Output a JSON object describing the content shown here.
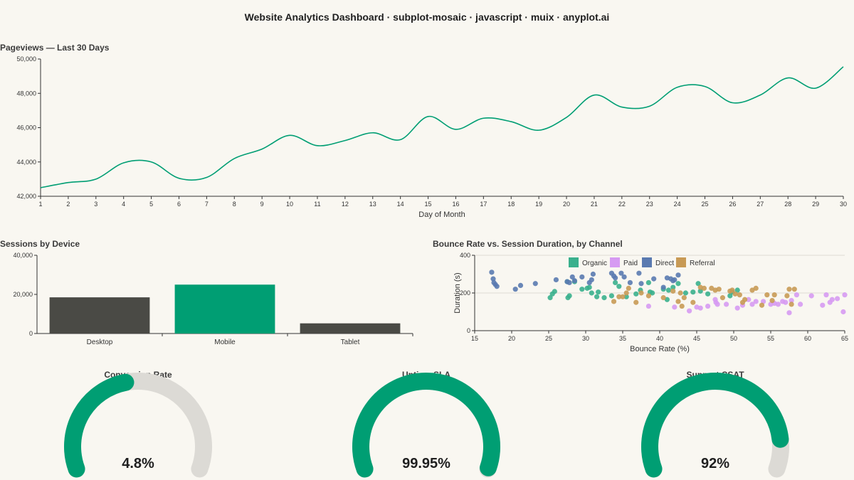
{
  "title": "Website Analytics Dashboard · subplot-mosaic · javascript · muix · anyplot.ai",
  "colors": {
    "accent": "#009e73",
    "neutral_bar": "#4a4a45",
    "gauge_track": "#dcdad5",
    "organic": "#3ab08d",
    "paid": "#d69af2",
    "direct": "#5a7ab0",
    "referral": "#c89a55"
  },
  "chart_data": [
    {
      "id": "pageviews",
      "type": "line",
      "title": "Pageviews — Last 30 Days",
      "xlabel": "Day of Month",
      "ylabel": "",
      "x": [
        1,
        2,
        3,
        4,
        5,
        6,
        7,
        8,
        9,
        10,
        11,
        12,
        13,
        14,
        15,
        16,
        17,
        18,
        19,
        20,
        21,
        22,
        23,
        24,
        25,
        26,
        27,
        28,
        29,
        30
      ],
      "values": [
        42500,
        42800,
        43000,
        43950,
        44000,
        43050,
        43100,
        44200,
        44750,
        45550,
        44950,
        45250,
        45700,
        45300,
        46650,
        45900,
        46550,
        46350,
        45850,
        46600,
        47900,
        47200,
        47250,
        48350,
        48400,
        47450,
        47900,
        48900,
        48300,
        49550
      ],
      "xlim": [
        1,
        30
      ],
      "ylim": [
        42000,
        50000
      ],
      "yticks": [
        "42,000",
        "44,000",
        "46,000",
        "48,000",
        "50,000"
      ],
      "grid": false
    },
    {
      "id": "sessions",
      "type": "bar",
      "title": "Sessions by Device",
      "xlabel": "",
      "ylabel": "",
      "categories": [
        "Desktop",
        "Mobile",
        "Tablet"
      ],
      "values": [
        18500,
        25000,
        5200
      ],
      "highlight": "Mobile",
      "ylim": [
        0,
        40000
      ],
      "yticks": [
        "0",
        "20,000",
        "40,000"
      ]
    },
    {
      "id": "bounce",
      "type": "scatter",
      "title": "Bounce Rate vs. Session Duration, by Channel",
      "xlabel": "Bounce Rate (%)",
      "ylabel": "Duration (s)",
      "xlim": [
        15,
        65
      ],
      "ylim": [
        0,
        400
      ],
      "xticks": [
        "15",
        "20",
        "25",
        "30",
        "35",
        "40",
        "45",
        "50",
        "55",
        "60",
        "65"
      ],
      "yticks": [
        "0",
        "200",
        "400"
      ],
      "grid": true,
      "legend_position": "top",
      "series": [
        {
          "name": "Organic",
          "color_key": "organic",
          "points": [
            [
              25.2,
              175
            ],
            [
              25.5,
              195
            ],
            [
              25.8,
              208
            ],
            [
              27.5,
              260
            ],
            [
              27.6,
              175
            ],
            [
              27.8,
              185
            ],
            [
              28.5,
              260
            ],
            [
              29.5,
              220
            ],
            [
              30.2,
              225
            ],
            [
              30.5,
              230
            ],
            [
              30.8,
              200
            ],
            [
              31.5,
              180
            ],
            [
              31.7,
              205
            ],
            [
              32.5,
              175
            ],
            [
              33.5,
              185
            ],
            [
              34,
              255
            ],
            [
              34.5,
              235
            ],
            [
              35.5,
              180
            ],
            [
              36.8,
              195
            ],
            [
              37.4,
              215
            ],
            [
              38.5,
              255
            ],
            [
              38.7,
              205
            ],
            [
              39,
              200
            ],
            [
              40.5,
              220
            ],
            [
              41,
              165
            ],
            [
              41.2,
              215
            ],
            [
              41.8,
              230
            ],
            [
              42.5,
              250
            ],
            [
              43.5,
              200
            ],
            [
              44.5,
              205
            ],
            [
              45.2,
              250
            ],
            [
              45.5,
              210
            ],
            [
              46.5,
              195
            ],
            [
              49.5,
              185
            ],
            [
              49.8,
              205
            ],
            [
              50.5,
              215
            ]
          ]
        },
        {
          "name": "Paid",
          "color_key": "paid",
          "points": [
            [
              38.5,
              130
            ],
            [
              42,
              125
            ],
            [
              44,
              105
            ],
            [
              45,
              125
            ],
            [
              45.5,
              120
            ],
            [
              46.5,
              130
            ],
            [
              47.5,
              165
            ],
            [
              47.6,
              150
            ],
            [
              47.8,
              140
            ],
            [
              49,
              140
            ],
            [
              50.5,
              120
            ],
            [
              51.2,
              135
            ],
            [
              52,
              165
            ],
            [
              52.5,
              140
            ],
            [
              53,
              155
            ],
            [
              54,
              155
            ],
            [
              55,
              140
            ],
            [
              55.5,
              145
            ],
            [
              56,
              140
            ],
            [
              56.6,
              155
            ],
            [
              57,
              150
            ],
            [
              57.5,
              95
            ],
            [
              57.8,
              160
            ],
            [
              58.5,
              190
            ],
            [
              59,
              140
            ],
            [
              60.5,
              185
            ],
            [
              62,
              135
            ],
            [
              62.5,
              190
            ],
            [
              63,
              150
            ],
            [
              63.3,
              165
            ],
            [
              64,
              170
            ],
            [
              64.8,
              100
            ],
            [
              65,
              190
            ]
          ]
        },
        {
          "name": "Direct",
          "color_key": "direct",
          "points": [
            [
              17.3,
              310
            ],
            [
              17.5,
              275
            ],
            [
              17.6,
              255
            ],
            [
              17.8,
              245
            ],
            [
              18,
              235
            ],
            [
              20.5,
              220
            ],
            [
              21.2,
              240
            ],
            [
              23.2,
              250
            ],
            [
              26,
              270
            ],
            [
              27.5,
              260
            ],
            [
              27.8,
              255
            ],
            [
              28.2,
              285
            ],
            [
              28.5,
              265
            ],
            [
              29.5,
              285
            ],
            [
              30.5,
              255
            ],
            [
              30.8,
              270
            ],
            [
              31,
              300
            ],
            [
              33.5,
              305
            ],
            [
              33.8,
              290
            ],
            [
              34,
              280
            ],
            [
              34.8,
              305
            ],
            [
              35.2,
              285
            ],
            [
              36,
              255
            ],
            [
              37.2,
              305
            ],
            [
              37.5,
              250
            ],
            [
              39.2,
              275
            ],
            [
              40.5,
              230
            ],
            [
              41,
              280
            ],
            [
              41.5,
              275
            ],
            [
              41.8,
              265
            ],
            [
              42,
              270
            ],
            [
              42.5,
              295
            ]
          ]
        },
        {
          "name": "Referral",
          "color_key": "referral",
          "points": [
            [
              33.8,
              155
            ],
            [
              34.5,
              180
            ],
            [
              35,
              180
            ],
            [
              35.5,
              200
            ],
            [
              35.8,
              225
            ],
            [
              36.8,
              150
            ],
            [
              37.5,
              200
            ],
            [
              38.5,
              185
            ],
            [
              40.5,
              175
            ],
            [
              41.8,
              210
            ],
            [
              42.5,
              155
            ],
            [
              42.8,
              200
            ],
            [
              43,
              130
            ],
            [
              43.3,
              175
            ],
            [
              44.5,
              150
            ],
            [
              45.5,
              230
            ],
            [
              46,
              225
            ],
            [
              47,
              225
            ],
            [
              47.5,
              215
            ],
            [
              48,
              220
            ],
            [
              48.5,
              175
            ],
            [
              49.5,
              210
            ],
            [
              49.8,
              215
            ],
            [
              50.2,
              195
            ],
            [
              50.8,
              190
            ],
            [
              51.2,
              150
            ],
            [
              51.5,
              165
            ],
            [
              52.5,
              215
            ],
            [
              53,
              225
            ],
            [
              53.8,
              135
            ],
            [
              54.5,
              190
            ],
            [
              55.2,
              160
            ],
            [
              55.5,
              190
            ],
            [
              57.2,
              185
            ],
            [
              57.5,
              220
            ],
            [
              57.8,
              140
            ],
            [
              58.2,
              220
            ]
          ]
        }
      ]
    }
  ],
  "gauges": [
    {
      "title": "Conversion Rate",
      "label": "4.8%",
      "fraction": 0.45
    },
    {
      "title": "Uptime SLA",
      "label": "99.95%",
      "fraction": 0.995
    },
    {
      "title": "Support CSAT",
      "label": "92%",
      "fraction": 0.88
    }
  ]
}
